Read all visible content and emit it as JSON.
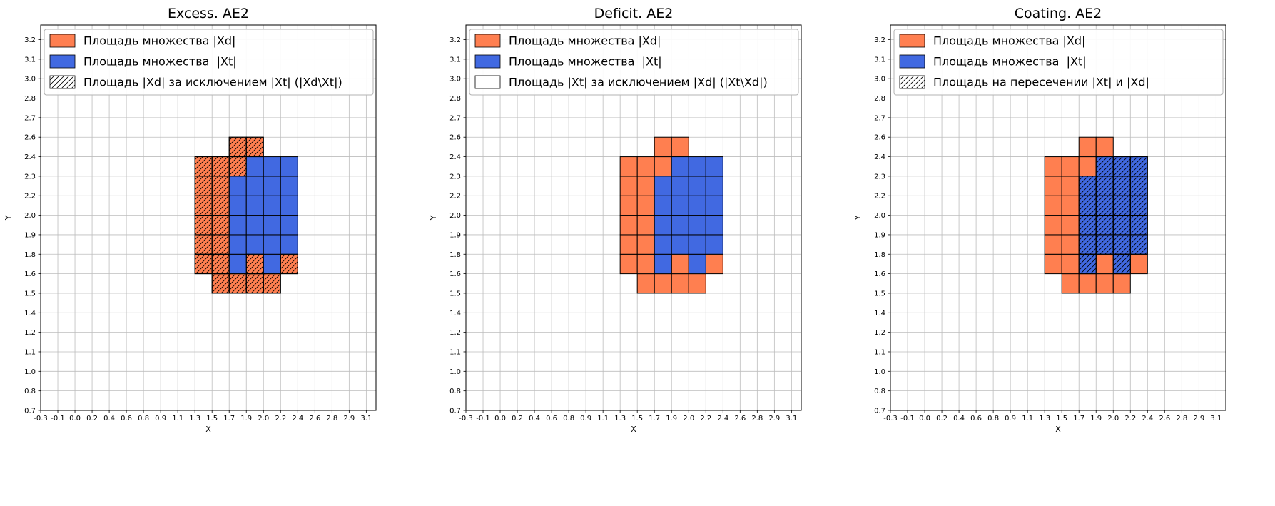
{
  "colors": {
    "xd_fill": "#ff7f50",
    "xt_fill": "#4169e1",
    "cell_edge": "#000000",
    "grid_line": "#bdbdbd",
    "legend_border": "#b3b3b3",
    "text": "#000000",
    "background": "#ffffff"
  },
  "shared_axes": {
    "xlabel": "X",
    "ylabel": "Y",
    "x_ticks": [
      "-0.3",
      "-0.1",
      "0.0",
      "0.2",
      "0.4",
      "0.6",
      "0.8",
      "0.9",
      "1.1",
      "1.3",
      "1.5",
      "1.7",
      "1.9",
      "2.0",
      "2.2",
      "2.4",
      "2.6",
      "2.8",
      "2.9",
      "3.1"
    ],
    "y_ticks": [
      "0.7",
      "0.8",
      "1.0",
      "1.1",
      "1.2",
      "1.4",
      "1.5",
      "1.6",
      "1.8",
      "1.9",
      "2.0",
      "2.2",
      "2.3",
      "2.4",
      "2.6",
      "2.7",
      "2.8",
      "3.0",
      "3.1",
      "3.2"
    ]
  },
  "cells": {
    "xd_only": [
      [
        10,
        6
      ],
      [
        11,
        6
      ],
      [
        12,
        6
      ],
      [
        13,
        6
      ],
      [
        9,
        7
      ],
      [
        10,
        7
      ],
      [
        12,
        7
      ],
      [
        14,
        7
      ],
      [
        9,
        8
      ],
      [
        10,
        8
      ],
      [
        9,
        9
      ],
      [
        10,
        9
      ],
      [
        9,
        10
      ],
      [
        10,
        10
      ],
      [
        9,
        11
      ],
      [
        10,
        11
      ],
      [
        9,
        12
      ],
      [
        10,
        12
      ],
      [
        11,
        12
      ],
      [
        11,
        13
      ],
      [
        12,
        13
      ]
    ],
    "xt": [
      [
        11,
        7
      ],
      [
        13,
        7
      ],
      [
        11,
        8
      ],
      [
        12,
        8
      ],
      [
        13,
        8
      ],
      [
        14,
        8
      ],
      [
        11,
        9
      ],
      [
        12,
        9
      ],
      [
        13,
        9
      ],
      [
        14,
        9
      ],
      [
        11,
        10
      ],
      [
        12,
        10
      ],
      [
        13,
        10
      ],
      [
        14,
        10
      ],
      [
        11,
        11
      ],
      [
        12,
        11
      ],
      [
        13,
        11
      ],
      [
        14,
        11
      ],
      [
        12,
        12
      ],
      [
        13,
        12
      ],
      [
        14,
        12
      ]
    ]
  },
  "chart_data": [
    {
      "type": "heatmap",
      "title": "Excess. AE2",
      "xlabel": "X",
      "ylabel": "Y",
      "x_range": [
        "-0.3",
        "3.2"
      ],
      "y_range": [
        "0.7",
        "3.3"
      ],
      "grid": "on",
      "legend_position": "upper-left",
      "legend": [
        {
          "swatch": "xd",
          "label": "Площадь множества |Xd|"
        },
        {
          "swatch": "xt",
          "label": "Площадь множества  |Xt|"
        },
        {
          "swatch": "hatch",
          "label": "Площадь |Xd| за исключением |Xt| (|Xd\\Xt|)"
        }
      ],
      "hatch_on": "xd_only"
    },
    {
      "type": "heatmap",
      "title": "Deficit. AE2",
      "xlabel": "X",
      "ylabel": "Y",
      "x_range": [
        "-0.3",
        "3.2"
      ],
      "y_range": [
        "0.7",
        "3.3"
      ],
      "grid": "on",
      "legend_position": "upper-left",
      "legend": [
        {
          "swatch": "xd",
          "label": "Площадь множества |Xd|"
        },
        {
          "swatch": "xt",
          "label": "Площадь множества  |Xt|"
        },
        {
          "swatch": "plain",
          "label": "Площадь |Xt| за исключением |Xd| (|Xt\\Xd|)"
        }
      ],
      "hatch_on": "none"
    },
    {
      "type": "heatmap",
      "title": "Coating. AE2",
      "xlabel": "X",
      "ylabel": "Y",
      "x_range": [
        "-0.3",
        "3.2"
      ],
      "y_range": [
        "0.7",
        "3.3"
      ],
      "grid": "on",
      "legend_position": "upper-left",
      "legend": [
        {
          "swatch": "xd",
          "label": "Площадь множества |Xd|"
        },
        {
          "swatch": "xt",
          "label": "Площадь множества  |Xt|"
        },
        {
          "swatch": "hatch",
          "label": "Площадь на пересечении |Xt| и |Xd|"
        }
      ],
      "hatch_on": "xt"
    }
  ]
}
